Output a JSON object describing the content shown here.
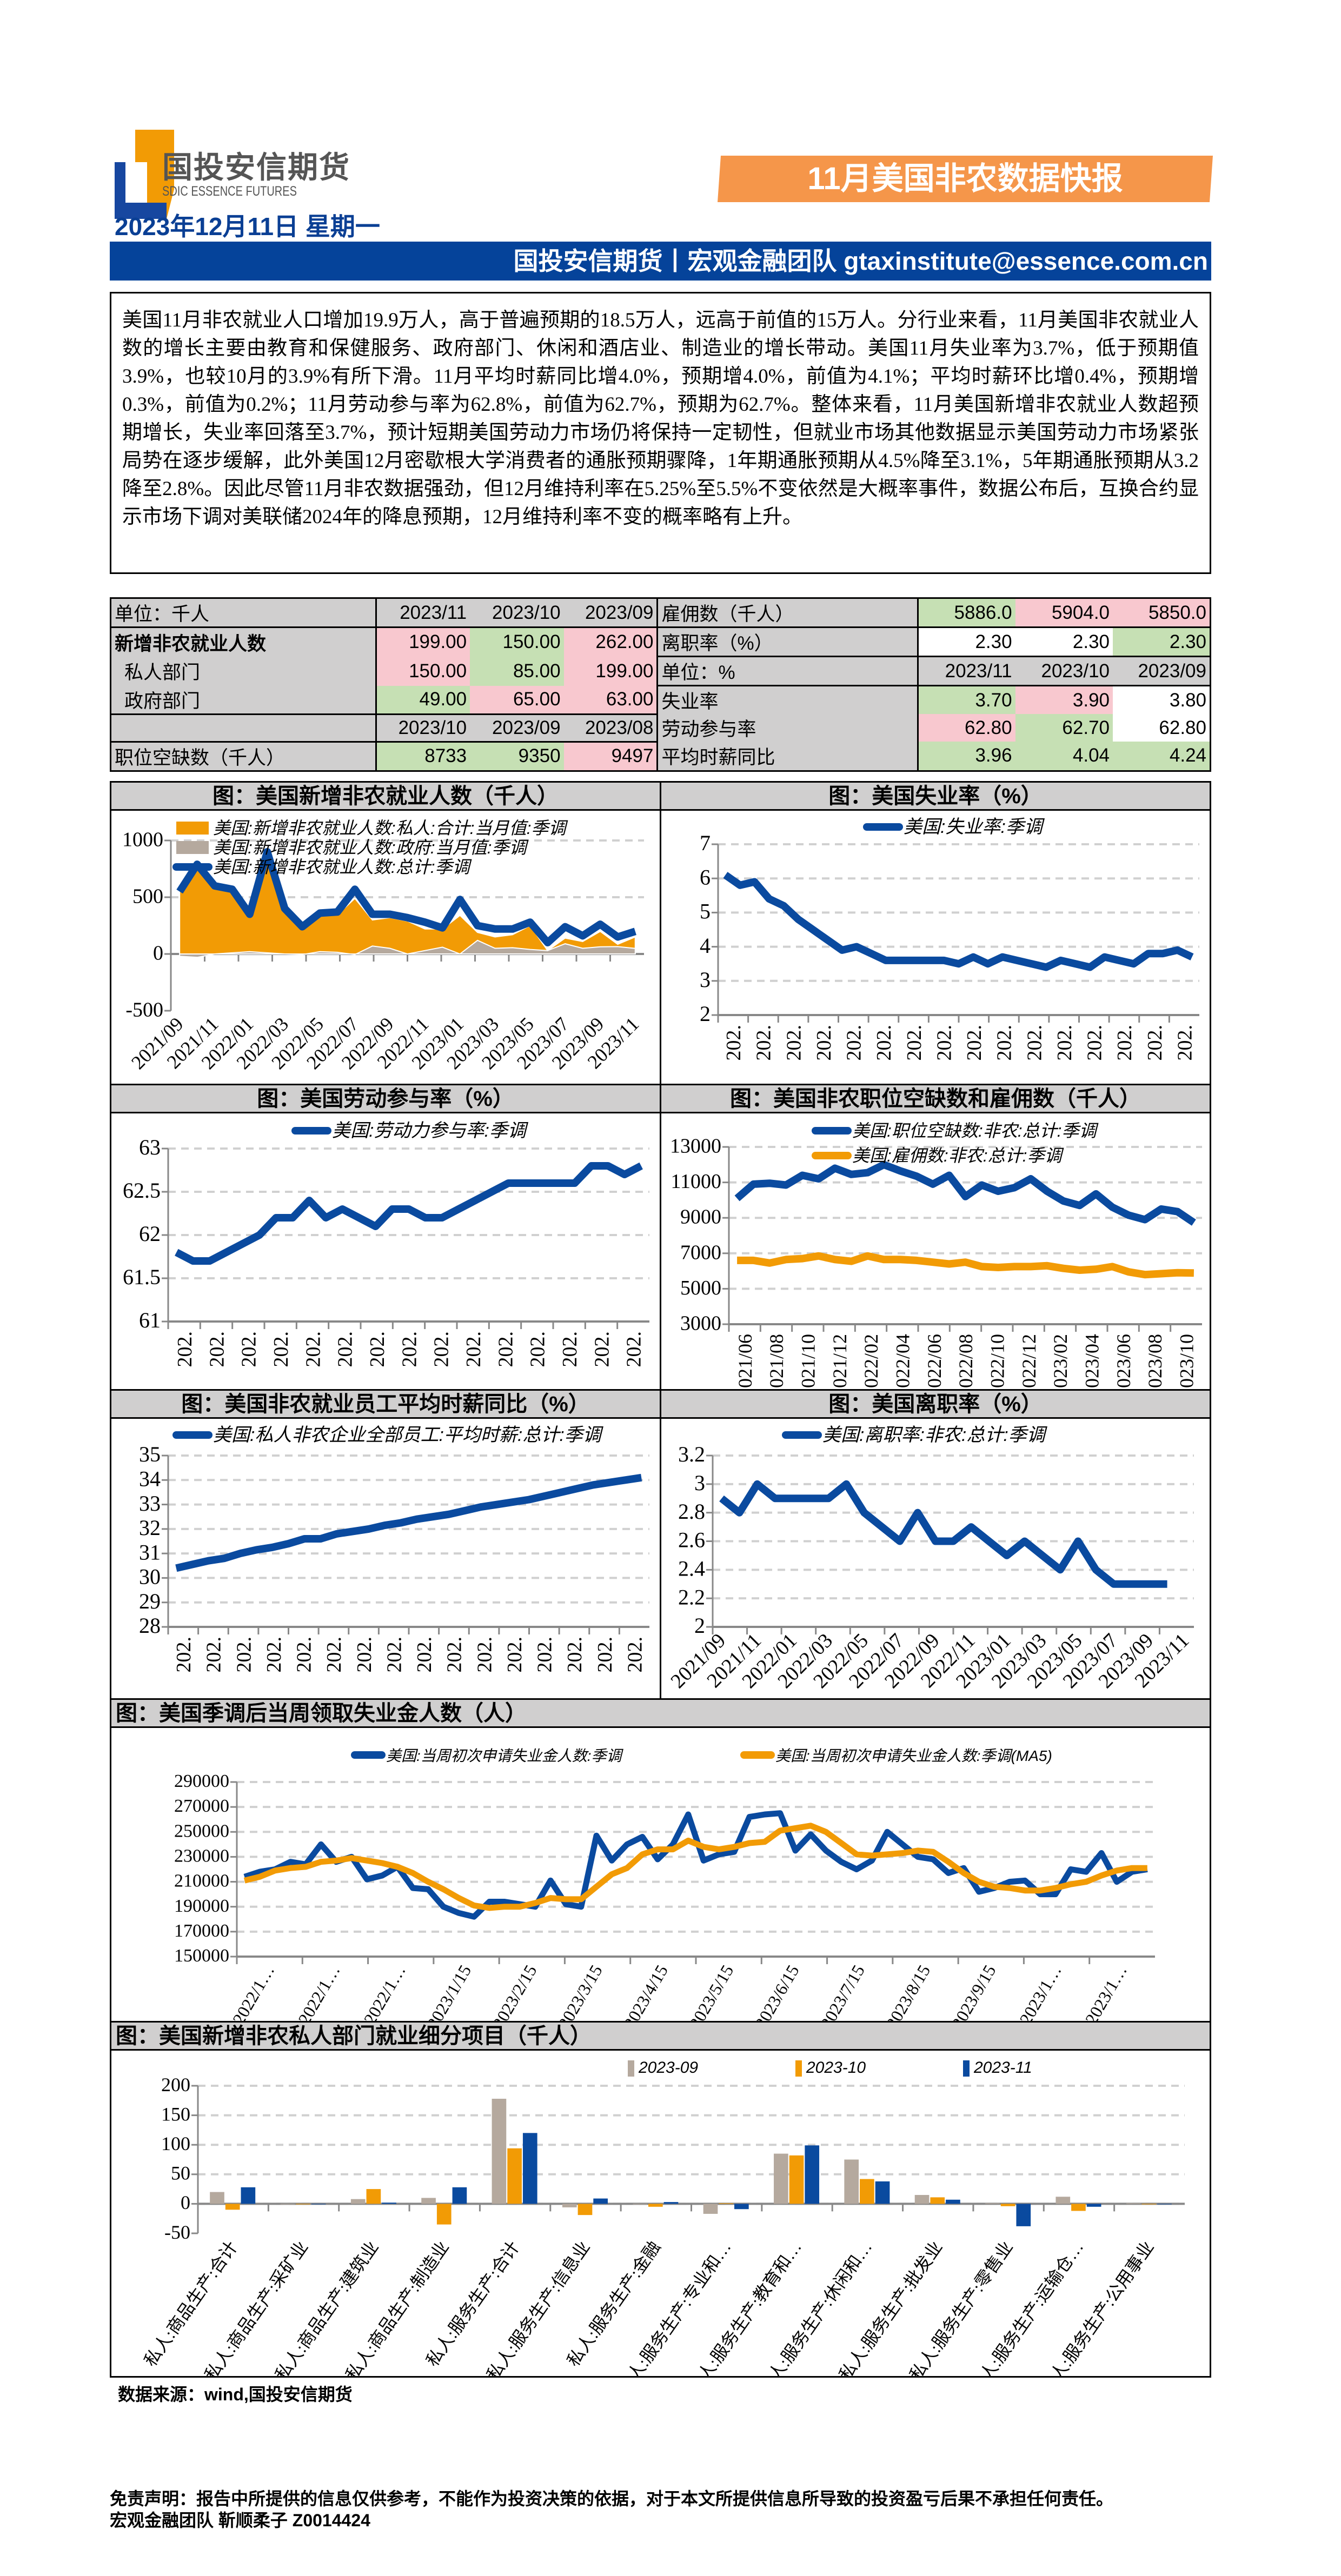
{
  "header": {
    "logo_cn": "国投安信期货",
    "logo_en": "SDIC ESSENCE FUTURES",
    "report_title": "11月美国非农数据快报",
    "date": "2023年12月11日 星期一",
    "contact_bar": "国投安信期货丨宏观金融团队  gtaxinstitute@essence.com.cn",
    "colors": {
      "brand_blue": "#05439a",
      "brand_orange": "#f5964a"
    }
  },
  "summary": "美国11月非农就业人口增加19.9万人，高于普遍预期的18.5万人，远高于前值的15万人。分行业来看，11月美国非农就业人数的增长主要由教育和保健服务、政府部门、休闲和酒店业、制造业的增长带动。美国11月失业率为3.7%，低于预期值3.9%，也较10月的3.9%有所下滑。11月平均时薪同比增4.0%，预期增4.0%，前值为4.1%；平均时薪环比增0.4%，预期增0.3%，前值为0.2%；11月劳动参与率为62.8%，前值为62.7%，预期为62.7%。整体来看，11月美国新增非农就业人数超预期增长，失业率回落至3.7%，预计短期美国劳动力市场仍将保持一定韧性，但就业市场其他数据显示美国劳动力市场紧张局势在逐步缓解，此外美国12月密歇根大学消费者的通胀预期骤降，1年期通胀预期从4.5%降至3.1%，5年期通胀预期从3.2降至2.8%。因此尽管11月非农数据强劲，但12月维持利率在5.25%至5.5%不变依然是大概率事件，数据公布后，互换合约显示市场下调对美联储2024年的降息预期，12月维持利率不变的概率略有上升。",
  "table": {
    "cell_colors": {
      "up": "#f8c8cf",
      "down": "#c6e0b4",
      "neutral": "#ffffff",
      "header": "#d0cfcf"
    },
    "rows": [
      {
        "left": {
          "label": "单位：千人",
          "header": true,
          "cells": [
            {
              "v": "2023/11"
            },
            {
              "v": "2023/10"
            },
            {
              "v": "2023/09"
            }
          ]
        },
        "right": {
          "label": "雇佣数（千人）",
          "cells": [
            {
              "v": "5886.0",
              "bg": "#c6e0b4"
            },
            {
              "v": "5904.0",
              "bg": "#f8c8cf"
            },
            {
              "v": "5850.0",
              "bg": "#f8c8cf"
            }
          ]
        }
      },
      {
        "left": {
          "label": "新增非农就业人数",
          "bold": true,
          "cells": [
            {
              "v": "199.00",
              "bg": "#f8c8cf"
            },
            {
              "v": "150.00",
              "bg": "#c6e0b4"
            },
            {
              "v": "262.00",
              "bg": "#f8c8cf"
            }
          ]
        },
        "right": {
          "label": "离职率（%）",
          "cells": [
            {
              "v": "2.30",
              "bg": "#ffffff"
            },
            {
              "v": "2.30",
              "bg": "#ffffff"
            },
            {
              "v": "2.30",
              "bg": "#c6e0b4"
            }
          ]
        }
      },
      {
        "left": {
          "label": "私人部门",
          "indent": true,
          "cells": [
            {
              "v": "150.00",
              "bg": "#f8c8cf"
            },
            {
              "v": "85.00",
              "bg": "#c6e0b4"
            },
            {
              "v": "199.00",
              "bg": "#f8c8cf"
            }
          ]
        },
        "right": {
          "label": "单位：%",
          "header": true,
          "cells": [
            {
              "v": "2023/11"
            },
            {
              "v": "2023/10"
            },
            {
              "v": "2023/09"
            }
          ]
        }
      },
      {
        "left": {
          "label": "政府部门",
          "indent": true,
          "cells": [
            {
              "v": "49.00",
              "bg": "#c6e0b4"
            },
            {
              "v": "65.00",
              "bg": "#f8c8cf"
            },
            {
              "v": "63.00",
              "bg": "#f8c8cf"
            }
          ]
        },
        "right": {
          "label": "失业率",
          "cells": [
            {
              "v": "3.70",
              "bg": "#c6e0b4"
            },
            {
              "v": "3.90",
              "bg": "#f8c8cf"
            },
            {
              "v": "3.80",
              "bg": "#ffffff"
            }
          ]
        }
      },
      {
        "left": {
          "label": "",
          "header": true,
          "cells": [
            {
              "v": "2023/10"
            },
            {
              "v": "2023/09"
            },
            {
              "v": "2023/08"
            }
          ]
        },
        "right": {
          "label": "劳动参与率",
          "cells": [
            {
              "v": "62.80",
              "bg": "#f8c8cf"
            },
            {
              "v": "62.70",
              "bg": "#c6e0b4"
            },
            {
              "v": "62.80",
              "bg": "#ffffff"
            }
          ]
        }
      },
      {
        "left": {
          "label": "职位空缺数（千人）",
          "cells": [
            {
              "v": "8733",
              "bg": "#c6e0b4"
            },
            {
              "v": "9350",
              "bg": "#c6e0b4"
            },
            {
              "v": "9497",
              "bg": "#f8c8cf"
            }
          ]
        },
        "right": {
          "label": "平均时薪同比",
          "cells": [
            {
              "v": "3.96",
              "bg": "#c6e0b4"
            },
            {
              "v": "4.04",
              "bg": "#c6e0b4"
            },
            {
              "v": "4.24",
              "bg": "#c6e0b4"
            }
          ]
        }
      }
    ]
  },
  "chart_data": [
    {
      "id": "nfp",
      "type": "area",
      "title": "图：美国新增非农就业人数（千人）",
      "ylim": [
        -500,
        1000
      ],
      "yticks": [
        -500,
        0,
        500,
        1000
      ],
      "grid": true,
      "legend": "top",
      "x_labels": [
        "2021/09",
        "2021/11",
        "2022/01",
        "2022/03",
        "2022/05",
        "2022/07",
        "2022/09",
        "2022/11",
        "2023/01",
        "2023/03",
        "2023/05",
        "2023/07",
        "2023/09",
        "2023/11"
      ],
      "series": [
        {
          "name": "美国:新增非农就业人数:私人:合计:当月值:季调",
          "kind": "area",
          "color": "#f29b05",
          "values": [
            560,
            810,
            600,
            560,
            350,
            880,
            400,
            230,
            340,
            345,
            490,
            300,
            320,
            290,
            220,
            220,
            340,
            190,
            150,
            170,
            250,
            30,
            140,
            110,
            199,
            85,
            150
          ]
        },
        {
          "name": "美国:新增非农就业人数:政府:当月值:季调",
          "kind": "area",
          "color": "#b5a99e",
          "values": [
            -20,
            -30,
            0,
            10,
            20,
            10,
            0,
            -5,
            20,
            15,
            -5,
            70,
            50,
            0,
            30,
            60,
            0,
            120,
            50,
            55,
            40,
            30,
            90,
            50,
            63,
            65,
            49
          ]
        },
        {
          "name": "美国:新增非农就业人数:总计:季调",
          "kind": "line",
          "color": "#0a4a9f",
          "values": [
            550,
            790,
            600,
            570,
            350,
            900,
            400,
            240,
            360,
            370,
            570,
            350,
            350,
            320,
            280,
            230,
            480,
            250,
            220,
            220,
            280,
            100,
            240,
            160,
            262,
            150,
            199
          ]
        }
      ]
    },
    {
      "id": "unemp",
      "type": "line",
      "title": "图：美国失业率（%）",
      "ylim": [
        2,
        7
      ],
      "yticks": [
        2,
        3,
        4,
        5,
        6,
        7
      ],
      "grid": true,
      "legend": "top",
      "x_labels": [
        "202.",
        "202.",
        "202.",
        "202.",
        "202.",
        "202.",
        "202.",
        "202.",
        "202.",
        "202.",
        "202.",
        "202.",
        "202.",
        "202.",
        "202.",
        "202."
      ],
      "series": [
        {
          "name": "美国:失业率:季调",
          "color": "#0a4a9f",
          "values": [
            6.1,
            5.8,
            5.9,
            5.4,
            5.2,
            4.8,
            4.5,
            4.2,
            3.9,
            4.0,
            3.8,
            3.6,
            3.6,
            3.6,
            3.6,
            3.6,
            3.5,
            3.7,
            3.5,
            3.7,
            3.6,
            3.5,
            3.4,
            3.6,
            3.5,
            3.4,
            3.7,
            3.6,
            3.5,
            3.8,
            3.8,
            3.9,
            3.7
          ]
        }
      ]
    },
    {
      "id": "lfpr",
      "type": "line",
      "title": "图：美国劳动参与率（%）",
      "ylim": [
        61,
        63
      ],
      "yticks": [
        61,
        61.5,
        62,
        62.5,
        63
      ],
      "grid": true,
      "legend": "top",
      "x_labels": [
        "202.",
        "202.",
        "202.",
        "202.",
        "202.",
        "202.",
        "202.",
        "202.",
        "202.",
        "202.",
        "202.",
        "202.",
        "202.",
        "202.",
        "202."
      ],
      "series": [
        {
          "name": "美国:劳动力参与率:季调",
          "color": "#0a4a9f",
          "values": [
            61.8,
            61.7,
            61.7,
            61.8,
            61.9,
            62.0,
            62.2,
            62.2,
            62.4,
            62.2,
            62.3,
            62.2,
            62.1,
            62.3,
            62.3,
            62.2,
            62.2,
            62.3,
            62.4,
            62.5,
            62.6,
            62.6,
            62.6,
            62.6,
            62.6,
            62.8,
            62.8,
            62.7,
            62.8
          ]
        }
      ]
    },
    {
      "id": "jolts",
      "type": "line",
      "title": "图：美国非农职位空缺数和雇佣数（千人）",
      "ylim": [
        3000,
        13000
      ],
      "yticks": [
        3000,
        5000,
        7000,
        9000,
        11000,
        13000
      ],
      "grid": true,
      "legend": "top",
      "x_labels": [
        "2021/06",
        "2021/08",
        "2021/10",
        "2021/12",
        "2022/02",
        "2022/04",
        "2022/06",
        "2022/08",
        "2022/10",
        "2022/12",
        "2023/02",
        "2023/04",
        "2023/06",
        "2023/08",
        "2023/10"
      ],
      "series": [
        {
          "name": "美国:职位空缺数:非农:总计:季调",
          "color": "#0a4a9f",
          "values": [
            10100,
            10900,
            10950,
            10850,
            11400,
            11200,
            11800,
            11450,
            11550,
            12000,
            11650,
            11350,
            10900,
            11400,
            10200,
            10850,
            10500,
            10700,
            11200,
            10500,
            9950,
            9700,
            10350,
            9600,
            9150,
            8900,
            9497,
            9350,
            8733
          ]
        },
        {
          "name": "美国:雇佣数:非农:总计:季调",
          "color": "#f29b05",
          "values": [
            6600,
            6600,
            6450,
            6650,
            6700,
            6850,
            6650,
            6550,
            6850,
            6650,
            6650,
            6600,
            6500,
            6400,
            6500,
            6250,
            6200,
            6250,
            6250,
            6300,
            6150,
            6050,
            6100,
            6250,
            5950,
            5800,
            5850,
            5904,
            5886
          ]
        }
      ]
    },
    {
      "id": "wage",
      "type": "line",
      "title": "图：美国非农就业员工平均时薪同比（%）",
      "ylim": [
        28,
        35
      ],
      "yticks": [
        28,
        29,
        30,
        31,
        32,
        33,
        34,
        35
      ],
      "grid": true,
      "legend": "top",
      "x_labels": [
        "202.",
        "202.",
        "202.",
        "202.",
        "202.",
        "202.",
        "202.",
        "202.",
        "202.",
        "202.",
        "202.",
        "202.",
        "202.",
        "202.",
        "202.",
        "202."
      ],
      "series": [
        {
          "name": "美国:私人非农企业全部员工:平均时薪:总计:季调",
          "color": "#0a4a9f",
          "values": [
            30.4,
            30.55,
            30.7,
            30.8,
            31.0,
            31.15,
            31.25,
            31.4,
            31.6,
            31.6,
            31.8,
            31.9,
            32.0,
            32.15,
            32.25,
            32.4,
            32.5,
            32.6,
            32.75,
            32.9,
            33.0,
            33.1,
            33.2,
            33.35,
            33.5,
            33.65,
            33.8,
            33.9,
            34.0,
            34.1
          ]
        }
      ]
    },
    {
      "id": "quits",
      "type": "line",
      "title": "图：美国离职率（%）",
      "ylim": [
        2,
        3.2
      ],
      "yticks": [
        2,
        2.2,
        2.4,
        2.6,
        2.8,
        3,
        3.2
      ],
      "grid": true,
      "legend": "top",
      "x_labels": [
        "2021/09",
        "2021/11",
        "2022/01",
        "2022/03",
        "2022/05",
        "2022/07",
        "2022/09",
        "2022/11",
        "2023/01",
        "2023/03",
        "2023/05",
        "2023/07",
        "2023/09",
        "2023/11"
      ],
      "series": [
        {
          "name": "美国:离职率:非农:总计:季调",
          "color": "#0a4a9f",
          "values": [
            2.9,
            2.8,
            3.0,
            2.9,
            2.9,
            2.9,
            2.9,
            3.0,
            2.8,
            2.7,
            2.6,
            2.8,
            2.6,
            2.6,
            2.7,
            2.6,
            2.5,
            2.6,
            2.5,
            2.4,
            2.6,
            2.4,
            2.3,
            2.3,
            2.3,
            2.3
          ]
        }
      ]
    },
    {
      "id": "claims",
      "type": "line",
      "title": "图：美国季调后当周领取失业金人数（人）",
      "ylim": [
        150000,
        290000
      ],
      "yticks": [
        150000,
        170000,
        190000,
        210000,
        230000,
        250000,
        270000,
        290000
      ],
      "grid": true,
      "legend": "top",
      "x_labels": [
        "2022/1…",
        "2022/1…",
        "2022/1…",
        "2023/1/15",
        "2023/2/15",
        "2023/3/15",
        "2023/4/15",
        "2023/5/15",
        "2023/6/15",
        "2023/7/15",
        "2023/8/15",
        "2023/9/15",
        "2023/1…",
        "2023/1…"
      ],
      "series": [
        {
          "name": "美国:当周初次申请失业金人数:季调",
          "color": "#0a4a9f",
          "values": [
            214000,
            218000,
            220000,
            226000,
            224000,
            240000,
            226000,
            230000,
            212000,
            215000,
            222000,
            205000,
            204000,
            190000,
            185000,
            182000,
            194000,
            194000,
            192000,
            190000,
            211000,
            192000,
            190000,
            247000,
            227000,
            240000,
            246000,
            228000,
            240000,
            264000,
            227000,
            232000,
            234000,
            262000,
            264000,
            265000,
            235000,
            248000,
            235000,
            226000,
            220000,
            227000,
            250000,
            240000,
            230000,
            228000,
            217000,
            221000,
            202000,
            205000,
            210000,
            211000,
            200000,
            200000,
            220000,
            218000,
            233000,
            210000,
            218000,
            220000
          ]
        },
        {
          "name": "美国:当周初次申请失业金人数:季调(MA5)",
          "color": "#f29b05",
          "values": [
            211000,
            214000,
            219000,
            221000,
            222000,
            226000,
            227000,
            229000,
            227000,
            225000,
            222000,
            217000,
            210000,
            204000,
            197000,
            191000,
            189000,
            190000,
            190000,
            193000,
            197000,
            196000,
            196000,
            206000,
            216000,
            221000,
            232000,
            236000,
            236000,
            243000,
            238000,
            236000,
            238000,
            241000,
            242000,
            251000,
            253000,
            255000,
            250000,
            241000,
            232000,
            231000,
            232000,
            233000,
            235000,
            234000,
            226000,
            217000,
            210000,
            206000,
            205000,
            203000,
            203000,
            205000,
            208000,
            210000,
            215000,
            219000,
            221000,
            221000
          ]
        }
      ]
    },
    {
      "id": "sectors",
      "type": "bar",
      "title": "图：美国新增非农私人部门就业细分项目（千人）",
      "ylim": [
        -50,
        200
      ],
      "yticks": [
        -50,
        0,
        50,
        100,
        150,
        200
      ],
      "grid": true,
      "legend": "top-right",
      "categories": [
        "私人:商品生产:合计",
        "私人:商品生产:采矿业",
        "私人:商品生产:建筑业",
        "私人:商品生产:制造业",
        "私人:服务生产:合计",
        "私人:服务生产:信息业",
        "私人:服务生产:金融",
        "私人:服务生产:专业和…",
        "私人:服务生产:教育和…",
        "私人:服务生产:休闲和…",
        "私人:服务生产:批发业",
        "私人:服务生产:零售业",
        "私人:服务生产:运输仓…",
        "私人:服务生产:公用事业"
      ],
      "series": [
        {
          "name": "2023-09",
          "color": "#b5a99e",
          "values": [
            20,
            0,
            8,
            10,
            178,
            -6,
            0,
            -17,
            85,
            75,
            15,
            1,
            12,
            1
          ]
        },
        {
          "name": "2023-10",
          "color": "#f29b05",
          "values": [
            -10,
            0,
            25,
            -35,
            94,
            -19,
            -5,
            1,
            82,
            42,
            11,
            -4,
            -12,
            0
          ]
        },
        {
          "name": "2023-11",
          "color": "#0a4a9f",
          "values": [
            28,
            0,
            2,
            28,
            120,
            9,
            3,
            -9,
            99,
            38,
            7,
            -38,
            -5,
            0
          ]
        }
      ]
    }
  ],
  "footer": {
    "source": "数据来源：wind,国投安信期货",
    "disclaimer": "免责声明：报告中所提供的信息仅供参考，不能作为投资决策的依据，对于本文所提供信息所导致的投资盈亏后果不承担任何责任。",
    "author": "宏观金融团队 靳顺柔子 Z0014424"
  }
}
